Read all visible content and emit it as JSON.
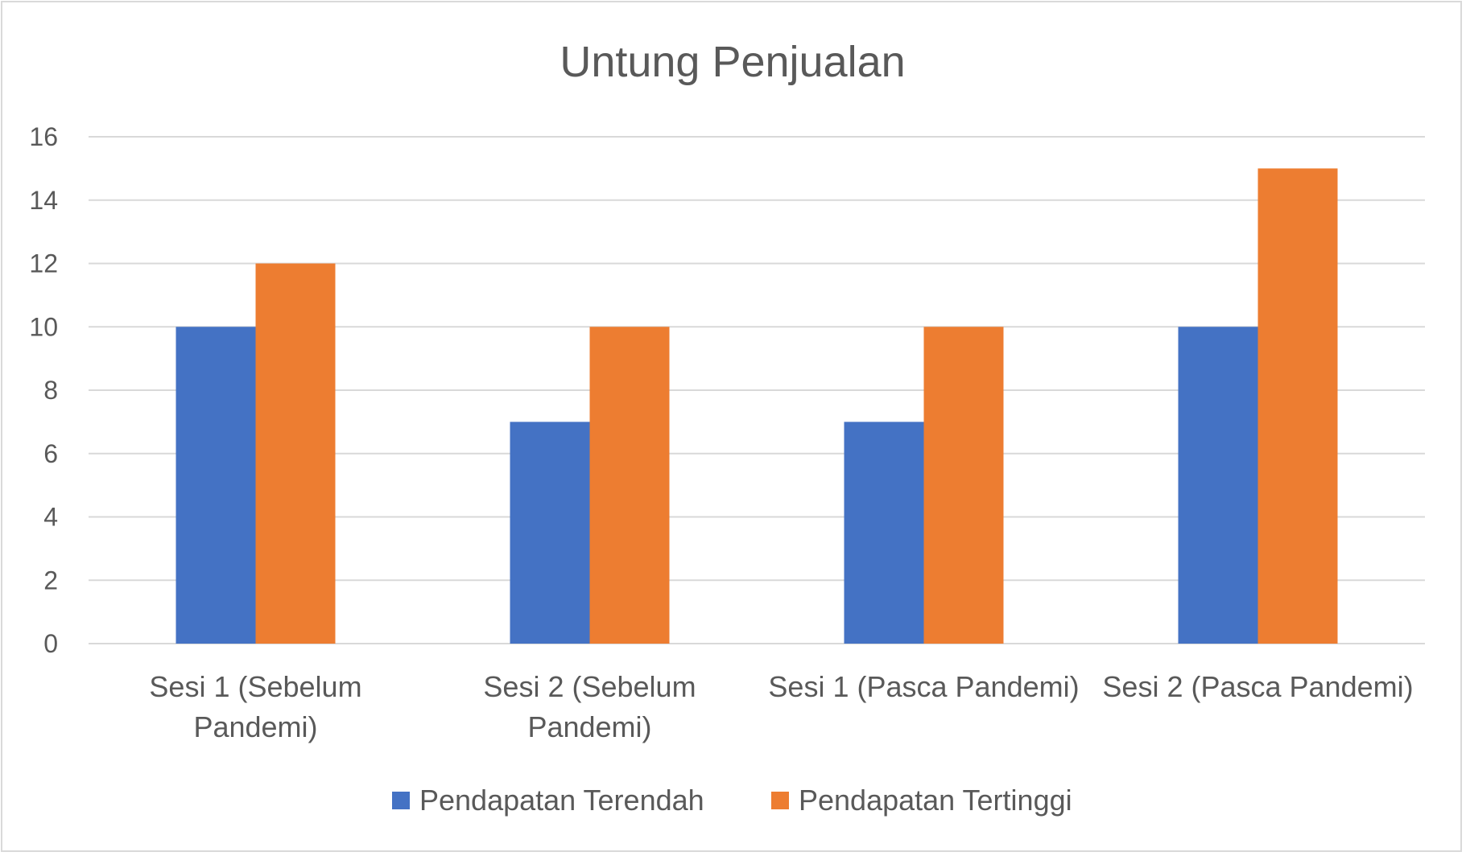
{
  "chart_data": {
    "type": "bar",
    "title": "Untung Penjualan",
    "categories": [
      [
        "Sesi 1 (Sebelum",
        "Pandemi)"
      ],
      [
        "Sesi 2 (Sebelum",
        "Pandemi)"
      ],
      [
        "Sesi 1 (Pasca Pandemi)"
      ],
      [
        "Sesi 2 (Pasca Pandemi)"
      ]
    ],
    "series": [
      {
        "name": "Pendapatan Terendah",
        "values": [
          10,
          7,
          7,
          10
        ],
        "color": "#4472c4"
      },
      {
        "name": "Pendapatan Tertinggi",
        "values": [
          12,
          10,
          10,
          15
        ],
        "color": "#ed7d31"
      }
    ],
    "ylim": [
      0,
      16
    ],
    "yticks": [
      "0",
      "2",
      "4",
      "6",
      "8",
      "10",
      "12",
      "14",
      "16"
    ],
    "xlabel": "",
    "ylabel": "",
    "grid": true,
    "legend_position": "bottom"
  }
}
